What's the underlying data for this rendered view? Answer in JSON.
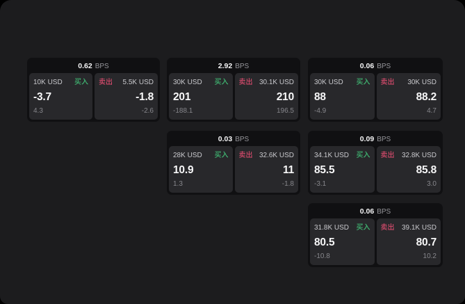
{
  "window": {
    "background": "#1c1c1e"
  },
  "labels": {
    "buy": "买入",
    "sell": "卖出",
    "bps_unit": "BPS"
  },
  "colors": {
    "buy_green": "#40b873",
    "sell_red": "#d44a6b",
    "card_background": "#101012",
    "panel_background": "#28282b"
  },
  "cards": [
    {
      "bps": "0.62",
      "buy": {
        "amount": "10K USD",
        "price": "-3.7",
        "change": "4.3"
      },
      "sell": {
        "amount": "5.5K USD",
        "price": "-1.8",
        "change": "-2.6"
      }
    },
    {
      "bps": "2.92",
      "buy": {
        "amount": "30K USD",
        "price": "201",
        "change": "-188.1"
      },
      "sell": {
        "amount": "30.1K USD",
        "price": "210",
        "change": "196.5"
      }
    },
    {
      "bps": "0.06",
      "buy": {
        "amount": "30K USD",
        "price": "88",
        "change": "-4.9"
      },
      "sell": {
        "amount": "30K USD",
        "price": "88.2",
        "change": "4.7"
      }
    },
    {
      "bps": "0.03",
      "buy": {
        "amount": "28K USD",
        "price": "10.9",
        "change": "1.3"
      },
      "sell": {
        "amount": "32.6K USD",
        "price": "11",
        "change": "-1.8"
      }
    },
    {
      "bps": "0.09",
      "buy": {
        "amount": "34.1K USD",
        "price": "85.5",
        "change": "-3.1"
      },
      "sell": {
        "amount": "32.8K USD",
        "price": "85.8",
        "change": "3.0"
      }
    },
    {
      "bps": "0.06",
      "buy": {
        "amount": "31.8K USD",
        "price": "80.5",
        "change": "-10.8"
      },
      "sell": {
        "amount": "39.1K USD",
        "price": "80.7",
        "change": "10.2"
      }
    }
  ]
}
